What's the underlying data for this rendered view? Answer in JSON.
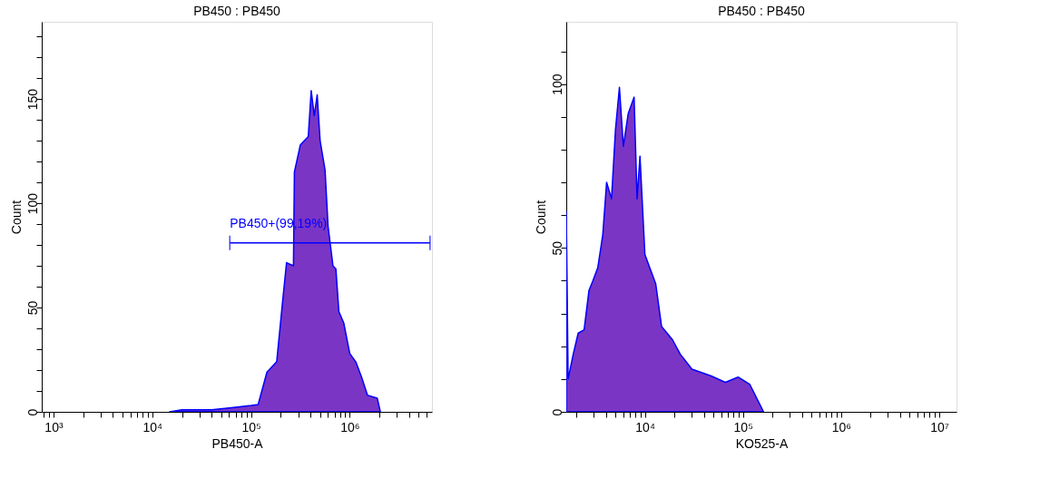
{
  "chart_data": [
    {
      "type": "area",
      "title": "PB450 : PB450",
      "xlabel": "PB450-A",
      "ylabel": "Count",
      "log": "x",
      "xlim": [
        760,
        6800000
      ],
      "ylim": [
        0,
        187
      ],
      "xticks": [
        {
          "value": 800,
          "label": null
        },
        {
          "value": 900,
          "label": null
        },
        {
          "value": 1000,
          "label": "10³"
        },
        {
          "value": 2000,
          "label": null
        },
        {
          "value": 3000,
          "label": null
        },
        {
          "value": 4000,
          "label": null
        },
        {
          "value": 5000,
          "label": null
        },
        {
          "value": 6000,
          "label": null
        },
        {
          "value": 7000,
          "label": null
        },
        {
          "value": 8000,
          "label": null
        },
        {
          "value": 9000,
          "label": null
        },
        {
          "value": 10000,
          "label": "10⁴"
        },
        {
          "value": 20000,
          "label": null
        },
        {
          "value": 30000,
          "label": null
        },
        {
          "value": 40000,
          "label": null
        },
        {
          "value": 50000,
          "label": null
        },
        {
          "value": 60000,
          "label": null
        },
        {
          "value": 70000,
          "label": null
        },
        {
          "value": 80000,
          "label": null
        },
        {
          "value": 90000,
          "label": null
        },
        {
          "value": 100000,
          "label": "10⁵"
        },
        {
          "value": 200000,
          "label": null
        },
        {
          "value": 300000,
          "label": null
        },
        {
          "value": 400000,
          "label": null
        },
        {
          "value": 500000,
          "label": null
        },
        {
          "value": 600000,
          "label": null
        },
        {
          "value": 700000,
          "label": null
        },
        {
          "value": 800000,
          "label": null
        },
        {
          "value": 900000,
          "label": null
        },
        {
          "value": 1000000,
          "label": "10⁶"
        },
        {
          "value": 2000000,
          "label": null
        },
        {
          "value": 3000000,
          "label": null
        },
        {
          "value": 4000000,
          "label": null
        },
        {
          "value": 5000000,
          "label": null
        },
        {
          "value": 6000000,
          "label": null
        }
      ],
      "yticks": [
        {
          "value": 0,
          "label": "0"
        },
        {
          "value": 10,
          "label": null
        },
        {
          "value": 20,
          "label": null
        },
        {
          "value": 30,
          "label": null
        },
        {
          "value": 40,
          "label": null
        },
        {
          "value": 50,
          "label": "50"
        },
        {
          "value": 60,
          "label": null
        },
        {
          "value": 70,
          "label": null
        },
        {
          "value": 80,
          "label": null
        },
        {
          "value": 90,
          "label": null
        },
        {
          "value": 100,
          "label": "100"
        },
        {
          "value": 110,
          "label": null
        },
        {
          "value": 120,
          "label": null
        },
        {
          "value": 130,
          "label": null
        },
        {
          "value": 140,
          "label": null
        },
        {
          "value": 150,
          "label": "150"
        },
        {
          "value": 160,
          "label": null
        },
        {
          "value": 170,
          "label": null
        },
        {
          "value": 180,
          "label": null
        }
      ],
      "series": [
        {
          "color": "#7a35c5",
          "x": [
            15000,
            20000,
            40000,
            63000,
            100000,
            118000,
            145000,
            182000,
            209000,
            229000,
            269000,
            275000,
            316000,
            380000,
            407000,
            437000,
            468000,
            501000,
            562000,
            603000,
            676000,
            724000,
            776000,
            871000,
            1000000,
            1150000,
            1320000,
            1510000,
            1900000,
            2040000
          ],
          "values": [
            0,
            1,
            1,
            2,
            3,
            3.5,
            19,
            24,
            53,
            71.5,
            70,
            115,
            128,
            132,
            154,
            142,
            152,
            130,
            116,
            89,
            70,
            68.5,
            48,
            42.5,
            28,
            24,
            16.5,
            8,
            6.5,
            0
          ]
        },
        {
          "type": "line",
          "color": "#0000ff",
          "x": [
            61000,
            6500000
          ],
          "values": [
            81,
            81
          ]
        }
      ],
      "annotations": [
        "PB450+(99,19%)"
      ]
    },
    {
      "type": "area",
      "title": "PB450 : PB450",
      "xlabel": "KO525-A",
      "ylabel": "Count",
      "log": "x",
      "xlim": [
        1580,
        15000000
      ],
      "ylim": [
        0,
        119
      ],
      "xticks": [
        {
          "value": 2000,
          "label": null
        },
        {
          "value": 3000,
          "label": null
        },
        {
          "value": 4000,
          "label": null
        },
        {
          "value": 5000,
          "label": null
        },
        {
          "value": 6000,
          "label": null
        },
        {
          "value": 7000,
          "label": null
        },
        {
          "value": 8000,
          "label": null
        },
        {
          "value": 9000,
          "label": null
        },
        {
          "value": 10000,
          "label": "10⁴"
        },
        {
          "value": 20000,
          "label": null
        },
        {
          "value": 30000,
          "label": null
        },
        {
          "value": 40000,
          "label": null
        },
        {
          "value": 50000,
          "label": null
        },
        {
          "value": 60000,
          "label": null
        },
        {
          "value": 70000,
          "label": null
        },
        {
          "value": 80000,
          "label": null
        },
        {
          "value": 90000,
          "label": null
        },
        {
          "value": 100000,
          "label": "10⁵"
        },
        {
          "value": 200000,
          "label": null
        },
        {
          "value": 300000,
          "label": null
        },
        {
          "value": 400000,
          "label": null
        },
        {
          "value": 500000,
          "label": null
        },
        {
          "value": 600000,
          "label": null
        },
        {
          "value": 700000,
          "label": null
        },
        {
          "value": 800000,
          "label": null
        },
        {
          "value": 900000,
          "label": null
        },
        {
          "value": 1000000,
          "label": "10⁶"
        },
        {
          "value": 2000000,
          "label": null
        },
        {
          "value": 3000000,
          "label": null
        },
        {
          "value": 4000000,
          "label": null
        },
        {
          "value": 5000000,
          "label": null
        },
        {
          "value": 6000000,
          "label": null
        },
        {
          "value": 7000000,
          "label": null
        },
        {
          "value": 8000000,
          "label": null
        },
        {
          "value": 9000000,
          "label": null
        },
        {
          "value": 10000000,
          "label": "10⁷"
        }
      ],
      "yticks": [
        {
          "value": 0,
          "label": "0"
        },
        {
          "value": 10,
          "label": null
        },
        {
          "value": 20,
          "label": null
        },
        {
          "value": 30,
          "label": null
        },
        {
          "value": 40,
          "label": null
        },
        {
          "value": 50,
          "label": "50"
        },
        {
          "value": 60,
          "label": null
        },
        {
          "value": 70,
          "label": null
        },
        {
          "value": 80,
          "label": null
        },
        {
          "value": 90,
          "label": null
        },
        {
          "value": 100,
          "label": "100"
        },
        {
          "value": 110,
          "label": null
        }
      ],
      "series": [
        {
          "color": "#7a35c5",
          "x": [
            1580,
            1650,
            1860,
            2090,
            2400,
            2690,
            2950,
            3310,
            3720,
            4070,
            4570,
            5010,
            5500,
            6030,
            6760,
            7760,
            8320,
            8910,
            10000,
            11200,
            12900,
            14800,
            19100,
            22900,
            30200,
            46800,
            66100,
            89100,
            117000,
            141000,
            162000
          ],
          "values": [
            61,
            10,
            17.6,
            24,
            25,
            37,
            40,
            44,
            54,
            70,
            65,
            86,
            99,
            81,
            91,
            96,
            65,
            78,
            48,
            44,
            39,
            26,
            22,
            17.6,
            13,
            11,
            9,
            10.6,
            8.4,
            3.6,
            0
          ]
        }
      ]
    }
  ]
}
